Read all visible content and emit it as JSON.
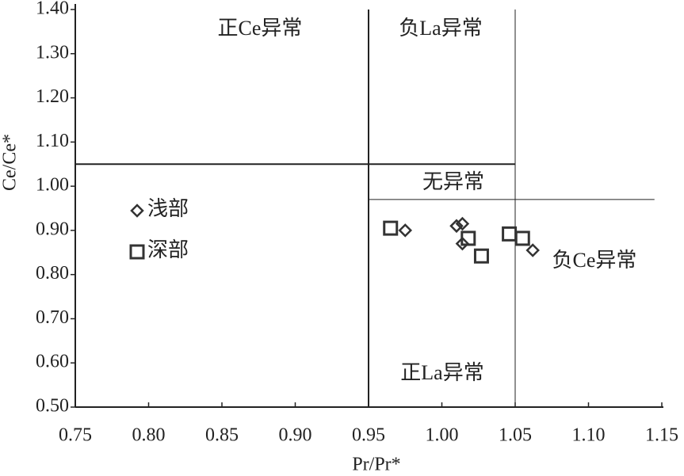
{
  "chart_data": {
    "type": "scatter",
    "x_label": "Pr/Pr*",
    "y_label": "Ce/Ce*",
    "xlim": [
      0.75,
      1.15
    ],
    "ylim": [
      0.5,
      1.4
    ],
    "xticks": [
      {
        "value": 0.75,
        "label": "0.75"
      },
      {
        "value": 0.8,
        "label": "0.80"
      },
      {
        "value": 0.85,
        "label": "0.85"
      },
      {
        "value": 0.9,
        "label": "0.90"
      },
      {
        "value": 0.95,
        "label": "0.95"
      },
      {
        "value": 1.0,
        "label": "1.00"
      },
      {
        "value": 1.05,
        "label": "1.05"
      },
      {
        "value": 1.1,
        "label": "1.10"
      },
      {
        "value": 1.15,
        "label": "1.15"
      }
    ],
    "yticks": [
      {
        "value": 0.5,
        "label": "0.50"
      },
      {
        "value": 0.6,
        "label": "0.60"
      },
      {
        "value": 0.7,
        "label": "0.70"
      },
      {
        "value": 0.8,
        "label": "0.80"
      },
      {
        "value": 0.9,
        "label": "0.90"
      },
      {
        "value": 1.0,
        "label": "1.00"
      },
      {
        "value": 1.1,
        "label": "1.10"
      },
      {
        "value": 1.2,
        "label": "1.20"
      },
      {
        "value": 1.3,
        "label": "1.30"
      },
      {
        "value": 1.4,
        "label": "1.40"
      }
    ],
    "series": [
      {
        "name": "浅部",
        "marker": "diamond",
        "color": "#333333",
        "x": [
          0.975,
          1.01,
          1.014,
          1.014,
          1.062
        ],
        "values": [
          0.9,
          0.91,
          0.915,
          0.87,
          0.855
        ]
      },
      {
        "name": "深部",
        "marker": "square",
        "color": "#333333",
        "x": [
          0.965,
          1.018,
          1.027,
          1.046,
          1.055
        ],
        "values": [
          0.905,
          0.882,
          0.842,
          0.892,
          0.882
        ]
      }
    ],
    "reference_lines": [
      {
        "x": [
          0.95,
          0.95
        ],
        "y": [
          0.5,
          1.4
        ],
        "width": 2
      },
      {
        "x": [
          1.05,
          1.05
        ],
        "y": [
          0.5,
          1.4
        ],
        "width": 1
      },
      {
        "x": [
          0.75,
          1.05
        ],
        "y": [
          1.05,
          1.05
        ],
        "width": 2
      },
      {
        "x": [
          0.95,
          1.145
        ],
        "y": [
          0.97,
          0.97
        ],
        "width": 1
      }
    ],
    "regions": [
      "正Ce异常",
      "负La异常",
      "无异常",
      "负Ce异常",
      "正La异常"
    ]
  }
}
